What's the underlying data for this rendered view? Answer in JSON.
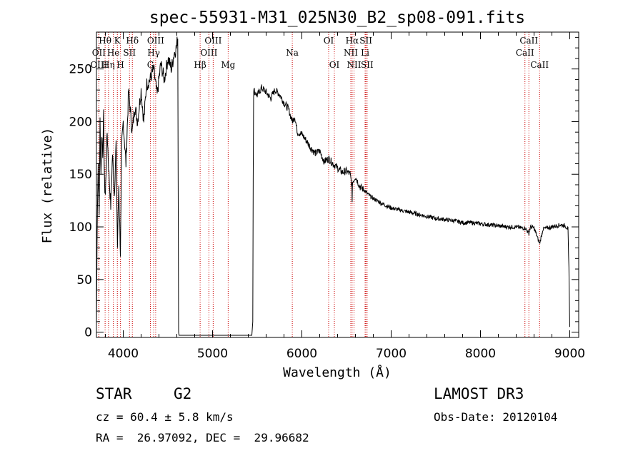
{
  "chart_data": {
    "type": "line",
    "title": "spec-55931-M31_025N30_B2_sp08-091.fits",
    "xlabel": "Wavelength (Å)",
    "ylabel": "Flux (relative)",
    "xlim": [
      3700,
      9100
    ],
    "ylim": [
      -5,
      285
    ],
    "xticks": [
      4000,
      5000,
      6000,
      7000,
      8000,
      9000
    ],
    "yticks": [
      0,
      50,
      100,
      150,
      200,
      250
    ],
    "series": [
      {
        "name": "flux",
        "x": [
          3700,
          3710,
          3720,
          3730,
          3740,
          3750,
          3760,
          3770,
          3780,
          3790,
          3800,
          3820,
          3840,
          3860,
          3880,
          3900,
          3920,
          3935,
          3950,
          3968,
          3985,
          4000,
          4030,
          4060,
          4100,
          4130,
          4160,
          4200,
          4230,
          4260,
          4300,
          4340,
          4380,
          4420,
          4460,
          4500,
          4540,
          4570,
          4595,
          4610,
          4620,
          4625,
          4630,
          4700,
          4800,
          4900,
          5000,
          5100,
          5200,
          5300,
          5400,
          5440,
          5450,
          5455,
          5460,
          5500,
          5550,
          5600,
          5650,
          5700,
          5750,
          5800,
          5850,
          5893,
          5920,
          5950,
          6000,
          6050,
          6100,
          6150,
          6200,
          6250,
          6300,
          6350,
          6400,
          6450,
          6500,
          6540,
          6560,
          6563,
          6566,
          6600,
          6650,
          6700,
          6750,
          6800,
          6900,
          7000,
          7100,
          7200,
          7300,
          7400,
          7500,
          7600,
          7700,
          7800,
          7900,
          8000,
          8100,
          8200,
          8300,
          8400,
          8450,
          8500,
          8542,
          8560,
          8600,
          8662,
          8700,
          8750,
          8800,
          8850,
          8900,
          8950,
          8980,
          8990,
          9000
        ],
        "y": [
          5,
          120,
          160,
          110,
          200,
          150,
          190,
          170,
          205,
          140,
          130,
          190,
          150,
          120,
          170,
          130,
          180,
          80,
          140,
          75,
          180,
          200,
          160,
          230,
          190,
          215,
          200,
          230,
          200,
          235,
          240,
          250,
          225,
          255,
          240,
          260,
          250,
          265,
          270,
          280,
          0,
          -3,
          -3,
          -3,
          -3,
          -3,
          -3,
          -3,
          -3,
          -3,
          -3,
          -3,
          10,
          150,
          230,
          225,
          232,
          228,
          222,
          230,
          226,
          218,
          212,
          200,
          205,
          190,
          188,
          182,
          175,
          170,
          172,
          162,
          165,
          160,
          156,
          152,
          153,
          150,
          140,
          120,
          142,
          148,
          138,
          135,
          130,
          127,
          122,
          118,
          116,
          114,
          112,
          110,
          108,
          107,
          106,
          104,
          104,
          103,
          102,
          101,
          100,
          100,
          99,
          99,
          94,
          100,
          99,
          84,
          98,
          99,
          100,
          101,
          102,
          101,
          98,
          60,
          5
        ]
      }
    ],
    "spectral_lines": [
      {
        "label": "Hθ",
        "wavelength": 3797,
        "row": 0
      },
      {
        "label": "OII",
        "wavelength": 3727,
        "row": 1
      },
      {
        "label": "OIII",
        "wavelength": 3727,
        "row": 2
      },
      {
        "label": "K",
        "wavelength": 3934,
        "row": 0
      },
      {
        "label": "He",
        "wavelength": 3889,
        "row": 1
      },
      {
        "label": "Hη",
        "wavelength": 3835,
        "row": 2
      },
      {
        "label": "Hδ",
        "wavelength": 4102,
        "row": 0
      },
      {
        "label": "SII",
        "wavelength": 4070,
        "row": 1
      },
      {
        "label": "H",
        "wavelength": 3969,
        "row": 2
      },
      {
        "label": "OIII",
        "wavelength": 4363,
        "row": 0
      },
      {
        "label": "Hγ",
        "wavelength": 4341,
        "row": 1
      },
      {
        "label": "G",
        "wavelength": 4304,
        "row": 2
      },
      {
        "label": "OIII",
        "wavelength": 5007,
        "row": 0
      },
      {
        "label": "OIII",
        "wavelength": 4959,
        "row": 1
      },
      {
        "label": "Hβ",
        "wavelength": 4861,
        "row": 2
      },
      {
        "label": "Mg",
        "wavelength": 5175,
        "row": 2
      },
      {
        "label": "Na",
        "wavelength": 5893,
        "row": 1
      },
      {
        "label": "OI",
        "wavelength": 6300,
        "row": 0
      },
      {
        "label": "OI",
        "wavelength": 6364,
        "row": 2
      },
      {
        "label": "Hα",
        "wavelength": 6563,
        "row": 0
      },
      {
        "label": "NII",
        "wavelength": 6548,
        "row": 1
      },
      {
        "label": "NII",
        "wavelength": 6584,
        "row": 2
      },
      {
        "label": "SII",
        "wavelength": 6717,
        "row": 0
      },
      {
        "label": "Li",
        "wavelength": 6708,
        "row": 1
      },
      {
        "label": "SII",
        "wavelength": 6731,
        "row": 2
      },
      {
        "label": "CaII",
        "wavelength": 8542,
        "row": 0
      },
      {
        "label": "CaII",
        "wavelength": 8498,
        "row": 1
      },
      {
        "label": "CaII",
        "wavelength": 8662,
        "row": 2
      }
    ]
  },
  "info": {
    "class_label": "STAR",
    "subclass": "G2",
    "survey": "LAMOST DR3",
    "cz": "cz = 60.4 ± 5.8 km/s",
    "obs_date": "Obs-Date: 20120104",
    "coords": "RA =  26.97092, DEC =  29.96682"
  },
  "colors": {
    "spectrum": "#000000",
    "line_markers": "#cc0000",
    "axes": "#000000"
  }
}
